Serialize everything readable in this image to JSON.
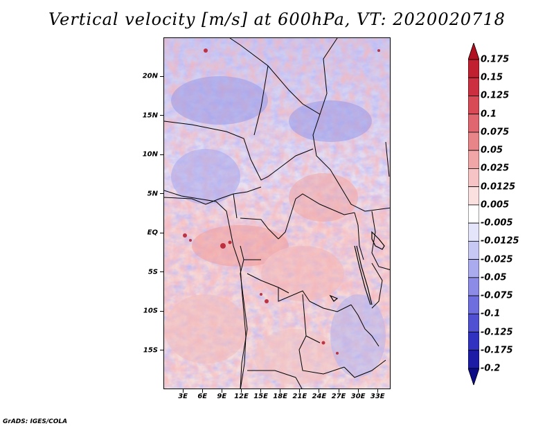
{
  "title": "Vertical velocity [m/s] at 600hPa, VT: 2020020718",
  "footer": "GrADS: IGES/COLA",
  "map": {
    "lat_range": [
      -20,
      25
    ],
    "lon_range": [
      0,
      35
    ],
    "lat_ticks": [
      {
        "value": 20,
        "label": "20N"
      },
      {
        "value": 15,
        "label": "15N"
      },
      {
        "value": 10,
        "label": "10N"
      },
      {
        "value": 5,
        "label": "5N"
      },
      {
        "value": 0,
        "label": "EQ"
      },
      {
        "value": -5,
        "label": "5S"
      },
      {
        "value": -10,
        "label": "10S"
      },
      {
        "value": -15,
        "label": "15S"
      }
    ],
    "lon_ticks": [
      {
        "value": 3,
        "label": "3E"
      },
      {
        "value": 6,
        "label": "6E"
      },
      {
        "value": 9,
        "label": "9E"
      },
      {
        "value": 12,
        "label": "12E"
      },
      {
        "value": 15,
        "label": "15E"
      },
      {
        "value": 18,
        "label": "18E"
      },
      {
        "value": 21,
        "label": "21E"
      },
      {
        "value": 24,
        "label": "24E"
      },
      {
        "value": 27,
        "label": "27E"
      },
      {
        "value": 30,
        "label": "30E"
      },
      {
        "value": 33,
        "label": "33E"
      }
    ]
  },
  "colorbar": {
    "levels": [
      "0.175",
      "0.15",
      "0.125",
      "0.1",
      "0.075",
      "0.05",
      "0.025",
      "0.0125",
      "0.005",
      "-0.005",
      "-0.0125",
      "-0.025",
      "-0.05",
      "-0.075",
      "-0.1",
      "-0.125",
      "-0.175",
      "-0.2"
    ],
    "colors": [
      "#b01020",
      "#c02030",
      "#cc3040",
      "#d84a55",
      "#e06670",
      "#e88588",
      "#f0a5a6",
      "#f6c4c4",
      "#fbe0e0",
      "#ffffff",
      "#e4e4fb",
      "#c8c8f4",
      "#aaaaee",
      "#8c8ce6",
      "#6e6ede",
      "#5050d2",
      "#3232c0",
      "#1c1ca6",
      "#0c0c86"
    ]
  }
}
